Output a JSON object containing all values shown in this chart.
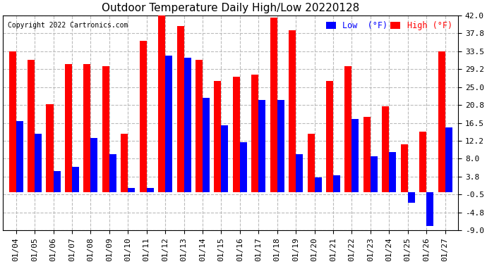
{
  "title": "Outdoor Temperature Daily High/Low 20220128",
  "copyright": "Copyright 2022 Cartronics.com",
  "legend_low_label": "Low  (°F)",
  "legend_high_label": "High (°F)",
  "dates": [
    "01/04",
    "01/05",
    "01/06",
    "01/07",
    "01/08",
    "01/09",
    "01/10",
    "01/11",
    "01/12",
    "01/13",
    "01/14",
    "01/15",
    "01/16",
    "01/17",
    "01/18",
    "01/19",
    "01/20",
    "01/21",
    "01/22",
    "01/23",
    "01/24",
    "01/25",
    "01/26",
    "01/27"
  ],
  "highs": [
    33.5,
    31.5,
    21.0,
    30.5,
    30.5,
    30.0,
    14.0,
    36.0,
    43.0,
    39.5,
    31.5,
    26.5,
    27.5,
    28.0,
    41.5,
    38.5,
    14.0,
    26.5,
    30.0,
    18.0,
    20.5,
    11.5,
    14.5,
    33.5
  ],
  "lows": [
    17.0,
    14.0,
    5.0,
    6.0,
    13.0,
    9.0,
    1.0,
    1.0,
    32.5,
    32.0,
    22.5,
    16.0,
    12.0,
    22.0,
    22.0,
    9.0,
    3.5,
    4.0,
    17.5,
    8.5,
    9.5,
    -2.5,
    -8.0,
    15.5
  ],
  "ylim": [
    -9.0,
    42.0
  ],
  "yticks": [
    -9.0,
    -4.8,
    -0.5,
    3.8,
    8.0,
    12.2,
    16.5,
    20.8,
    25.0,
    29.2,
    33.5,
    37.8,
    42.0
  ],
  "high_color": "#ff0000",
  "low_color": "#0000ff",
  "background_color": "#ffffff",
  "grid_color": "#bbbbbb",
  "title_fontsize": 11,
  "tick_fontsize": 8,
  "bar_width": 0.38
}
